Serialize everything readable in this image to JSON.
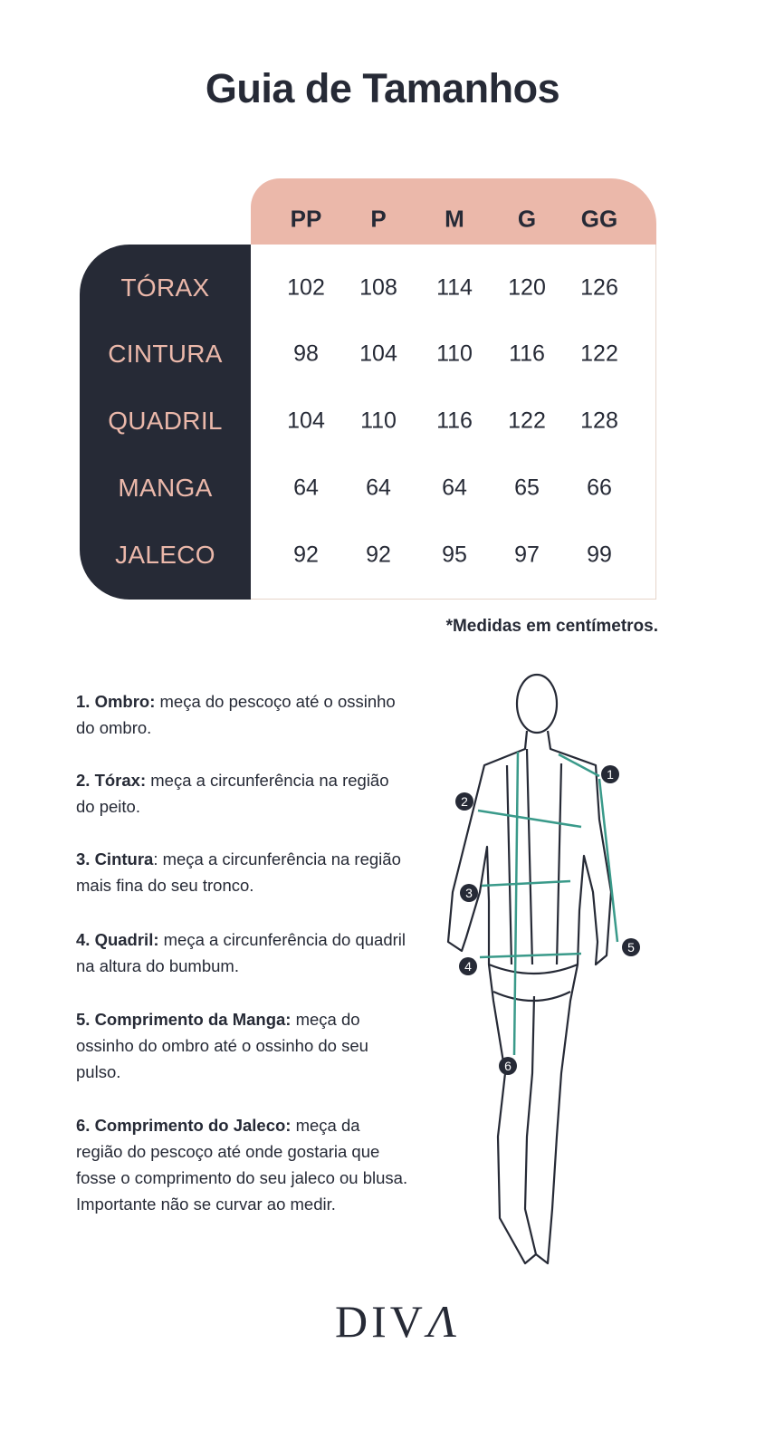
{
  "title": "Guia de Tamanhos",
  "table": {
    "sizes": [
      "PP",
      "P",
      "M",
      "G",
      "GG"
    ],
    "rows": [
      {
        "label": "TÓRAX",
        "values": [
          "102",
          "108",
          "114",
          "120",
          "126"
        ]
      },
      {
        "label": "CINTURA",
        "values": [
          "98",
          "104",
          "110",
          "116",
          "122"
        ]
      },
      {
        "label": "QUADRIL",
        "values": [
          "104",
          "110",
          "116",
          "122",
          "128"
        ]
      },
      {
        "label": "MANGA",
        "values": [
          "64",
          "64",
          "64",
          "65",
          "66"
        ]
      },
      {
        "label": "JALECO",
        "values": [
          "92",
          "92",
          "95",
          "97",
          "99"
        ]
      }
    ]
  },
  "note": "*Medidas em centímetros.",
  "instructions": [
    {
      "term": "1. Ombro:",
      "text": " meça do pescoço até o ossinho do ombro."
    },
    {
      "term": "2. Tórax:",
      "text": " meça a circunferência na região do peito."
    },
    {
      "term": "3. Cintura",
      "text": ": meça a circunferência na região mais fina do seu tronco."
    },
    {
      "term": "4. Quadril:",
      "text": " meça a circunferência do quadril na altura do bumbum."
    },
    {
      "term": "5. Comprimento da Manga:",
      "text": " meça do ossinho do ombro até o ossinho do seu pulso."
    },
    {
      "term": "6. Comprimento do Jaleco:",
      "text": " meça da região do pescoço até onde gostaria que fosse o comprimento do seu jaleco ou blusa. Importante não se curvar ao medir."
    }
  ],
  "figure": {
    "markers": [
      "1",
      "2",
      "3",
      "4",
      "5",
      "6"
    ]
  },
  "logo": "DIVA",
  "colors": {
    "dark": "#262a36",
    "pink": "#ebb8aa",
    "teal": "#3a9a8a"
  }
}
